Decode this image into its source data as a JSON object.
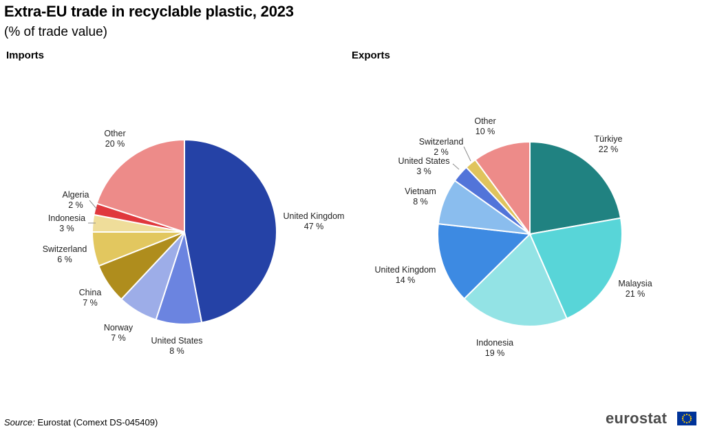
{
  "title": "Extra-EU trade in recyclable plastic, 2023",
  "subtitle": "(% of trade value)",
  "source_label": "Source:",
  "source_text": "Eurostat (Comext DS-045409)",
  "brand": "eurostat",
  "chart_data": [
    {
      "type": "pie",
      "title": "Imports",
      "unit": "%",
      "slices": [
        {
          "label": "United Kingdom",
          "value": 47,
          "color": "#2542a6"
        },
        {
          "label": "United States",
          "value": 8,
          "color": "#6b84e0"
        },
        {
          "label": "Norway",
          "value": 7,
          "color": "#9dade8"
        },
        {
          "label": "China",
          "value": 7,
          "color": "#af8d1d"
        },
        {
          "label": "Switzerland",
          "value": 6,
          "color": "#e2c75f"
        },
        {
          "label": "Indonesia",
          "value": 3,
          "color": "#efdd9a"
        },
        {
          "label": "Algeria",
          "value": 2,
          "color": "#e0383d"
        },
        {
          "label": "Other",
          "value": 20,
          "color": "#ed8b89"
        }
      ]
    },
    {
      "type": "pie",
      "title": "Exports",
      "unit": "%",
      "slices": [
        {
          "label": "Türkiye",
          "value": 22,
          "color": "#208281"
        },
        {
          "label": "Malaysia",
          "value": 21,
          "color": "#58d5d8"
        },
        {
          "label": "Indonesia",
          "value": 19,
          "color": "#93e3e5"
        },
        {
          "label": "United Kingdom",
          "value": 14,
          "color": "#3d8ae2"
        },
        {
          "label": "Vietnam",
          "value": 8,
          "color": "#8abdee"
        },
        {
          "label": "United States",
          "value": 3,
          "color": "#5274d9"
        },
        {
          "label": "Switzerland",
          "value": 2,
          "color": "#e0c45c"
        },
        {
          "label": "Other",
          "value": 10,
          "color": "#ed8b89"
        }
      ]
    }
  ]
}
